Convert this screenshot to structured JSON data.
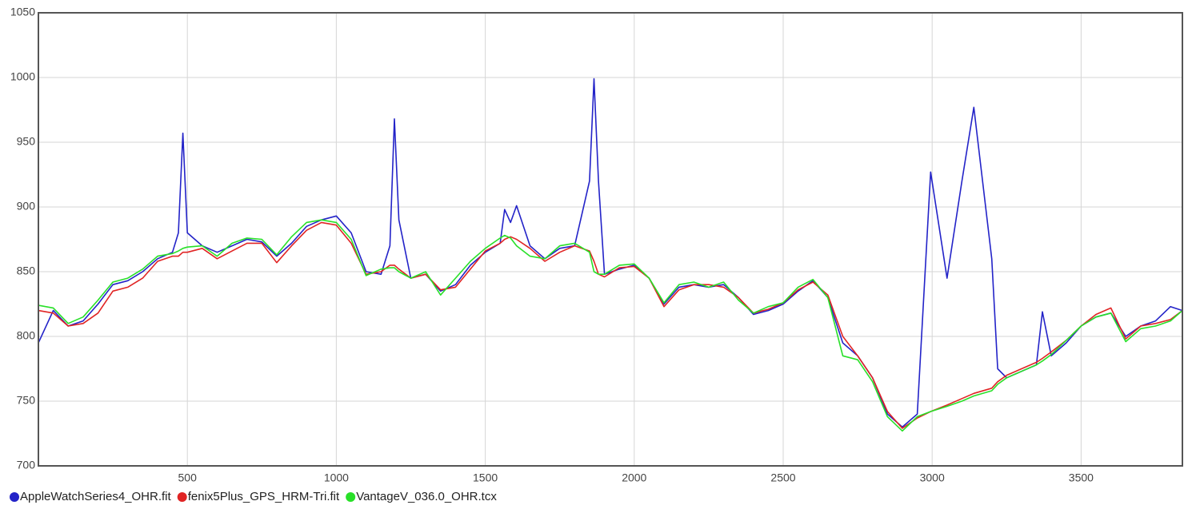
{
  "chart_data": {
    "type": "line",
    "x": [
      0,
      50,
      100,
      150,
      200,
      250,
      300,
      350,
      400,
      450,
      470,
      485,
      500,
      550,
      600,
      650,
      700,
      750,
      800,
      850,
      900,
      950,
      1000,
      1050,
      1100,
      1150,
      1180,
      1195,
      1210,
      1250,
      1300,
      1350,
      1400,
      1450,
      1500,
      1550,
      1565,
      1585,
      1605,
      1650,
      1700,
      1750,
      1800,
      1850,
      1865,
      1880,
      1900,
      1950,
      2000,
      2050,
      2100,
      2150,
      2200,
      2250,
      2300,
      2350,
      2400,
      2450,
      2500,
      2550,
      2600,
      2650,
      2700,
      2750,
      2800,
      2850,
      2900,
      2950,
      2995,
      3050,
      3100,
      3140,
      3200,
      3220,
      3250,
      3300,
      3350,
      3370,
      3400,
      3450,
      3500,
      3550,
      3600,
      3650,
      3700,
      3750,
      3800,
      3840
    ],
    "series": [
      {
        "name": "AppleWatchSeries4_OHR.fit",
        "color": "#2323c8",
        "values": [
          795,
          820,
          808,
          812,
          825,
          840,
          843,
          850,
          860,
          865,
          880,
          957,
          880,
          870,
          865,
          870,
          875,
          873,
          862,
          872,
          885,
          890,
          893,
          880,
          850,
          848,
          870,
          968,
          890,
          845,
          848,
          835,
          840,
          855,
          865,
          872,
          898,
          888,
          901,
          870,
          860,
          868,
          870,
          920,
          999,
          920,
          848,
          852,
          855,
          845,
          825,
          838,
          840,
          838,
          840,
          830,
          817,
          820,
          825,
          835,
          843,
          830,
          795,
          785,
          768,
          740,
          730,
          740,
          927,
          845,
          920,
          977,
          860,
          775,
          768,
          773,
          778,
          819,
          785,
          795,
          808,
          815,
          818,
          800,
          808,
          812,
          823,
          820
        ]
      },
      {
        "name": "fenix5Plus_GPS_HRM-Tri.fit",
        "color": "#e02424",
        "values": [
          820,
          818,
          808,
          810,
          818,
          835,
          838,
          845,
          858,
          862,
          862,
          865,
          865,
          868,
          860,
          866,
          872,
          872,
          857,
          870,
          882,
          888,
          886,
          872,
          848,
          850,
          855,
          855,
          852,
          845,
          848,
          836,
          838,
          852,
          866,
          872,
          875,
          877,
          875,
          868,
          858,
          865,
          870,
          866,
          858,
          848,
          846,
          853,
          854,
          845,
          823,
          836,
          840,
          840,
          838,
          830,
          818,
          821,
          826,
          836,
          842,
          832,
          800,
          785,
          768,
          742,
          729,
          737,
          742,
          747,
          752,
          756,
          760,
          765,
          770,
          775,
          780,
          783,
          788,
          797,
          808,
          817,
          822,
          798,
          808,
          810,
          813,
          820
        ]
      },
      {
        "name": "VantageV_036.0_OHR.tcx",
        "color": "#28e028",
        "values": [
          824,
          822,
          810,
          815,
          828,
          842,
          845,
          852,
          862,
          864,
          866,
          868,
          869,
          870,
          862,
          872,
          876,
          875,
          863,
          877,
          888,
          890,
          888,
          875,
          847,
          852,
          853,
          853,
          850,
          845,
          850,
          832,
          845,
          858,
          868,
          876,
          878,
          876,
          870,
          862,
          860,
          870,
          872,
          865,
          850,
          848,
          848,
          855,
          856,
          845,
          826,
          840,
          842,
          838,
          842,
          828,
          818,
          823,
          826,
          838,
          844,
          830,
          785,
          782,
          765,
          738,
          727,
          738,
          742,
          746,
          750,
          754,
          758,
          763,
          768,
          773,
          778,
          781,
          786,
          797,
          808,
          815,
          818,
          796,
          806,
          808,
          812,
          820
        ]
      }
    ],
    "xlim": [
      0,
      3840
    ],
    "xticks": [
      500,
      1000,
      1500,
      2000,
      2500,
      3000,
      3500
    ],
    "ylim": [
      700,
      1050
    ],
    "yticks": [
      700,
      750,
      800,
      850,
      900,
      950,
      1000,
      1050
    ],
    "grid": true,
    "legend": "bottom"
  }
}
